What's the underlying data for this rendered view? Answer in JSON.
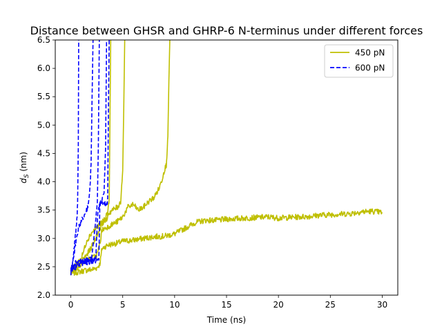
{
  "chart_data": {
    "type": "line",
    "title": "Distance between GHSR and GHRP-6 N-terminus under different forces",
    "xlabel": "Time (ns)",
    "ylabel_main": "d",
    "ylabel_sub": "S",
    "ylabel_unit": " (nm)",
    "xlim": [
      -1.5,
      31.5
    ],
    "ylim": [
      2.0,
      6.5
    ],
    "xticks": [
      0,
      5,
      10,
      15,
      20,
      25,
      30
    ],
    "yticks": [
      2.0,
      2.5,
      3.0,
      3.5,
      4.0,
      4.5,
      5.0,
      5.5,
      6.0,
      6.5
    ],
    "legend_position": "top-right",
    "grid": false,
    "series": [
      {
        "name": "450 pN",
        "color": "#bfbf00",
        "style": "solid",
        "runs": [
          {
            "x": [
              0,
              0.5,
              1,
              1.5,
              2,
              2.5,
              2.8,
              3.0,
              3.5,
              4.0,
              4.5,
              5.0,
              6,
              7,
              8,
              9,
              10,
              11,
              12,
              13,
              14,
              15,
              16,
              17,
              18,
              19,
              20,
              21,
              22,
              23,
              24,
              25,
              26,
              27,
              28,
              29,
              30
            ],
            "y": [
              2.38,
              2.4,
              2.42,
              2.44,
              2.45,
              2.48,
              2.55,
              2.82,
              2.88,
              2.9,
              2.92,
              2.95,
              2.97,
              3.0,
              3.03,
              3.04,
              3.08,
              3.18,
              3.28,
              3.32,
              3.32,
              3.34,
              3.35,
              3.36,
              3.37,
              3.38,
              3.36,
              3.37,
              3.38,
              3.39,
              3.41,
              3.42,
              3.43,
              3.44,
              3.47,
              3.48,
              3.46
            ]
          },
          {
            "x": [
              0,
              0.5,
              1,
              1.5,
              2,
              2.5,
              2.8,
              3.0,
              3.5,
              4.0,
              4.5,
              5.0,
              5.5,
              6.0,
              6.5,
              7.0,
              7.5,
              8.0,
              8.5,
              8.8,
              9.0,
              9.2,
              9.35,
              9.45,
              9.55
            ],
            "y": [
              2.4,
              2.46,
              2.55,
              2.62,
              2.65,
              2.7,
              2.9,
              3.15,
              3.2,
              3.25,
              3.3,
              3.38,
              3.55,
              3.6,
              3.5,
              3.55,
              3.65,
              3.72,
              3.88,
              4.05,
              4.2,
              4.3,
              4.8,
              5.8,
              6.6
            ]
          },
          {
            "x": [
              0,
              0.5,
              1,
              1.5,
              2,
              2.5,
              3,
              3.5,
              4,
              4.5,
              4.8,
              5.0,
              5.1,
              5.2
            ],
            "y": [
              2.42,
              2.5,
              2.6,
              2.7,
              2.85,
              3.05,
              3.25,
              3.42,
              3.5,
              3.55,
              3.65,
              4.2,
              5.3,
              6.6
            ]
          },
          {
            "x": [
              0,
              0.5,
              1,
              1.2,
              1.5,
              2,
              2.5,
              3,
              3.5,
              3.7,
              3.85
            ],
            "y": [
              2.45,
              2.55,
              2.65,
              2.75,
              2.95,
              3.1,
              3.2,
              3.28,
              3.35,
              3.7,
              6.6
            ]
          }
        ]
      },
      {
        "name": "600 pN",
        "color": "#0000ff",
        "style": "dashed",
        "runs": [
          {
            "x": [
              0,
              0.2,
              0.4,
              0.55,
              0.65,
              0.72,
              0.76
            ],
            "y": [
              2.4,
              2.6,
              3.0,
              3.2,
              3.6,
              4.6,
              6.6
            ]
          },
          {
            "x": [
              0,
              0.3,
              0.6,
              0.8,
              1.0,
              1.3,
              1.6,
              1.8,
              1.95,
              2.05,
              2.15
            ],
            "y": [
              2.4,
              2.7,
              3.05,
              3.2,
              3.3,
              3.4,
              3.55,
              3.75,
              4.3,
              5.5,
              6.6
            ]
          },
          {
            "x": [
              0,
              0.5,
              1.0,
              1.5,
              2.0,
              2.4,
              2.55,
              2.65,
              2.75
            ],
            "y": [
              2.42,
              2.58,
              2.6,
              2.62,
              2.65,
              3.3,
              3.6,
              4.6,
              6.6
            ]
          },
          {
            "x": [
              0,
              0.5,
              1,
              1.5,
              2,
              2.5,
              2.7,
              2.8,
              3.0,
              3.3,
              3.5,
              3.55,
              3.62,
              3.7
            ],
            "y": [
              2.45,
              2.5,
              2.55,
              2.58,
              2.6,
              2.62,
              2.62,
              3.6,
              3.65,
              3.6,
              3.62,
              3.7,
              5.2,
              6.6
            ]
          },
          {
            "x": [
              0,
              0.5,
              1.0,
              1.5,
              2.0,
              2.4,
              2.6,
              3.0,
              3.2,
              3.35,
              3.45
            ],
            "y": [
              2.44,
              2.52,
              2.6,
              2.6,
              2.6,
              2.62,
              3.5,
              3.68,
              3.8,
              4.6,
              6.6
            ]
          }
        ]
      }
    ]
  }
}
